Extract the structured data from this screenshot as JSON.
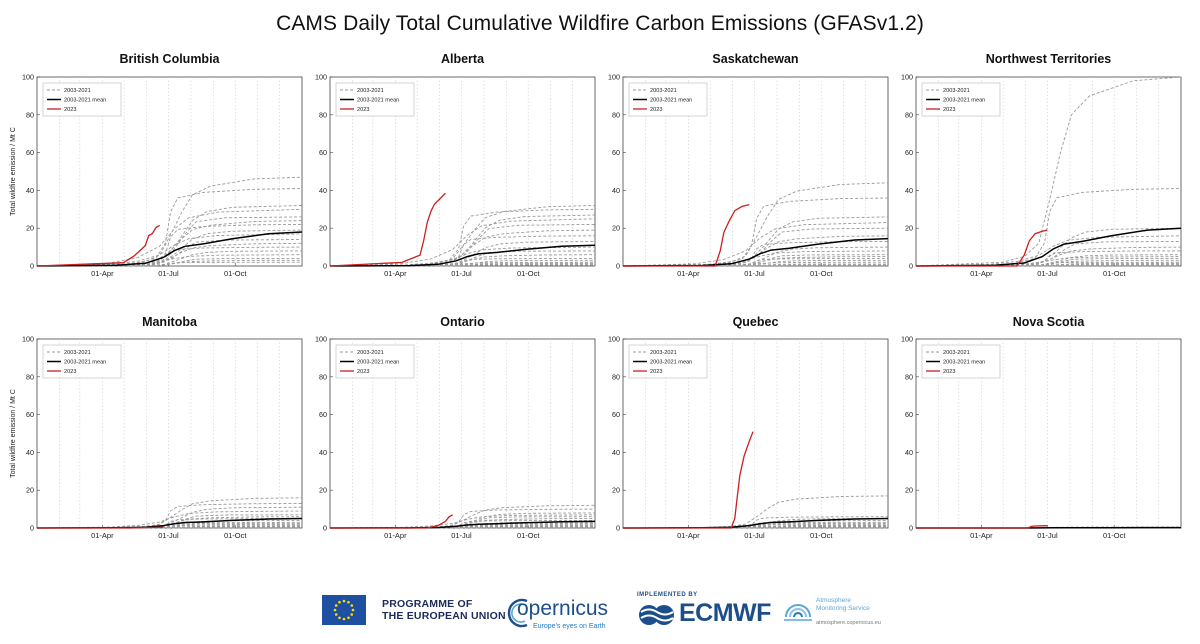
{
  "title": "CAMS Daily Total Cumulative Wildfire Carbon Emissions (GFASv1.2)",
  "footer": {
    "eu_line1": "PROGRAMME OF",
    "eu_line2": "THE EUROPEAN UNION",
    "copernicus": "opernicus",
    "copernicus_tagline": "Europe's eyes on Earth",
    "implemented_by": "IMPLEMENTED BY",
    "ecmwf": "ECMWF",
    "cams_name_line1": "Atmosphere",
    "cams_name_line2": "Monitoring Service",
    "cams_url": "atmosphere.copernicus.eu"
  },
  "colors": {
    "history": "#9a9a9a",
    "mean": "#000000",
    "y2023": "#cc1f1f",
    "eu_blue": "#1f4fa0",
    "eu_star": "#ffdd00",
    "brand_blue": "#1d4e8c"
  },
  "chart_data": [
    {
      "type": "line",
      "title": "British Columbia",
      "ylabel": "Total wildfire emission / Mt C",
      "xticks": [
        "01-Apr",
        "01-Jul",
        "01-Oct"
      ],
      "ylim": [
        0,
        100
      ],
      "yticks": [
        0,
        20,
        40,
        60,
        80,
        100
      ],
      "legend": [
        "2003-2021",
        "2003-2021 mean",
        "2023"
      ],
      "series": [
        {
          "name": "2003-2021",
          "values": [
            47,
            41,
            32,
            30,
            26,
            24,
            22,
            19,
            17,
            14,
            12,
            10,
            8,
            6,
            4,
            3,
            2
          ]
        },
        {
          "name": "2003-2021 mean",
          "values": [
            18
          ]
        },
        {
          "name": "2023",
          "values": [
            21.5
          ]
        }
      ]
    },
    {
      "type": "line",
      "title": "Alberta",
      "ylabel": "Total wildfire emission / Mt C",
      "xticks": [
        "01-Apr",
        "01-Jul",
        "01-Oct"
      ],
      "ylim": [
        0,
        100
      ],
      "yticks": [
        0,
        20,
        40,
        60,
        80,
        100
      ],
      "legend": [
        "2003-2021",
        "2003-2021 mean",
        "2023"
      ],
      "series": [
        {
          "name": "2003-2021",
          "values": [
            32,
            30,
            27,
            25,
            22,
            19,
            16,
            13,
            10,
            8,
            6,
            4,
            3,
            2,
            1.5,
            1,
            0.5
          ]
        },
        {
          "name": "2003-2021 mean",
          "values": [
            11
          ]
        },
        {
          "name": "2023",
          "values": [
            38.5
          ]
        }
      ]
    },
    {
      "type": "line",
      "title": "Saskatchewan",
      "ylabel": "Total wildfire emission / Mt C",
      "xticks": [
        "01-Apr",
        "01-Jul",
        "01-Oct"
      ],
      "ylim": [
        0,
        100
      ],
      "yticks": [
        0,
        20,
        40,
        60,
        80,
        100
      ],
      "legend": [
        "2003-2021",
        "2003-2021 mean",
        "2023"
      ],
      "series": [
        {
          "name": "2003-2021",
          "values": [
            44,
            36,
            26,
            23,
            20,
            16,
            13,
            10,
            8,
            6,
            5,
            4,
            3,
            2,
            1,
            0.5,
            0.2
          ]
        },
        {
          "name": "2003-2021 mean",
          "values": [
            14.5
          ]
        },
        {
          "name": "2023",
          "values": [
            32.5
          ]
        }
      ]
    },
    {
      "type": "line",
      "title": "Northwest Territories",
      "ylabel": "Total wildfire emission / Mt C",
      "xticks": [
        "01-Apr",
        "01-Jul",
        "01-Oct"
      ],
      "ylim": [
        0,
        100
      ],
      "yticks": [
        0,
        20,
        40,
        60,
        80,
        100
      ],
      "legend": [
        "2003-2021",
        "2003-2021 mean",
        "2023"
      ],
      "series": [
        {
          "name": "2003-2021",
          "values": [
            100,
            41,
            20,
            16,
            13,
            10,
            8,
            6,
            5,
            4,
            3,
            2,
            1.5,
            1,
            0.5,
            0.3,
            0.1
          ]
        },
        {
          "name": "2003-2021 mean",
          "values": [
            20
          ]
        },
        {
          "name": "2023",
          "values": [
            19
          ]
        }
      ]
    },
    {
      "type": "line",
      "title": "Manitoba",
      "ylabel": "Total wildfire emission / Mt C",
      "xticks": [
        "01-Apr",
        "01-Jul",
        "01-Oct"
      ],
      "ylim": [
        0,
        100
      ],
      "yticks": [
        0,
        20,
        40,
        60,
        80,
        100
      ],
      "legend": [
        "2003-2021",
        "2003-2021 mean",
        "2023"
      ],
      "series": [
        {
          "name": "2003-2021",
          "values": [
            16,
            13,
            11,
            9,
            7,
            6,
            5,
            4,
            3,
            2.5,
            2,
            1.5,
            1,
            0.8,
            0.5,
            0.3,
            0.1
          ]
        },
        {
          "name": "2003-2021 mean",
          "values": [
            5
          ]
        },
        {
          "name": "2023",
          "values": [
            0.5
          ]
        }
      ]
    },
    {
      "type": "line",
      "title": "Ontario",
      "ylabel": "Total wildfire emission / Mt C",
      "xticks": [
        "01-Apr",
        "01-Jul",
        "01-Oct"
      ],
      "ylim": [
        0,
        100
      ],
      "yticks": [
        0,
        20,
        40,
        60,
        80,
        100
      ],
      "legend": [
        "2003-2021",
        "2003-2021 mean",
        "2023"
      ],
      "series": [
        {
          "name": "2003-2021",
          "values": [
            12,
            10,
            8,
            7,
            6,
            5,
            4,
            3,
            2.5,
            2,
            1.5,
            1,
            0.8,
            0.5,
            0.3,
            0.2,
            0.1
          ]
        },
        {
          "name": "2003-2021 mean",
          "values": [
            3.5
          ]
        },
        {
          "name": "2023",
          "values": [
            7
          ]
        }
      ]
    },
    {
      "type": "line",
      "title": "Quebec",
      "ylabel": "Total wildfire emission / Mt C",
      "xticks": [
        "01-Apr",
        "01-Jul",
        "01-Oct"
      ],
      "ylim": [
        0,
        100
      ],
      "yticks": [
        0,
        20,
        40,
        60,
        80,
        100
      ],
      "legend": [
        "2003-2021",
        "2003-2021 mean",
        "2023"
      ],
      "series": [
        {
          "name": "2003-2021",
          "values": [
            17,
            6,
            5,
            4,
            3,
            2.5,
            2,
            1.5,
            1.2,
            1,
            0.8,
            0.6,
            0.5,
            0.3,
            0.2,
            0.1,
            0.05
          ]
        },
        {
          "name": "2003-2021 mean",
          "values": [
            5
          ]
        },
        {
          "name": "2023",
          "values": [
            51
          ]
        }
      ]
    },
    {
      "type": "line",
      "title": "Nova Scotia",
      "ylabel": "Total wildfire emission / Mt C",
      "xticks": [
        "01-Apr",
        "01-Jul",
        "01-Oct"
      ],
      "ylim": [
        0,
        100
      ],
      "yticks": [
        0,
        20,
        40,
        60,
        80,
        100
      ],
      "legend": [
        "2003-2021",
        "2003-2021 mean",
        "2023"
      ],
      "series": [
        {
          "name": "2003-2021",
          "values": [
            0.5,
            0.4,
            0.3,
            0.3,
            0.2,
            0.2,
            0.1,
            0.1,
            0.1,
            0.1,
            0.05,
            0.05,
            0.05,
            0.02,
            0.02,
            0.01,
            0.01
          ]
        },
        {
          "name": "2003-2021 mean",
          "values": [
            0.2
          ]
        },
        {
          "name": "2023",
          "values": [
            1.2
          ]
        }
      ]
    }
  ]
}
